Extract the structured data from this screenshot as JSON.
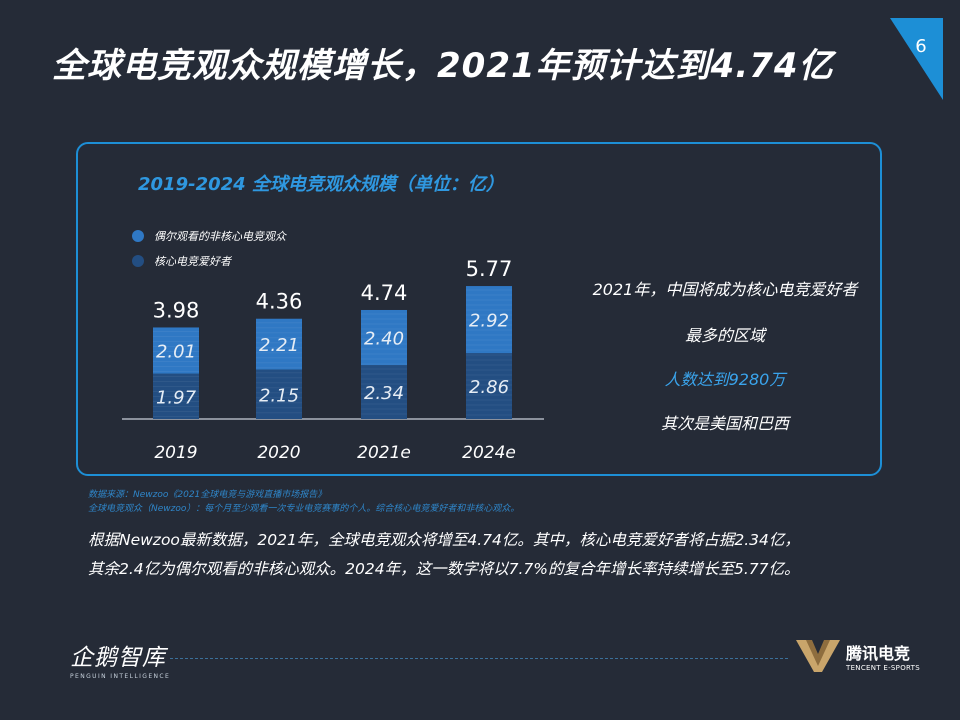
{
  "title": "全球电竞观众规模增长，2021年预计达到4.74亿",
  "page_number": "6",
  "colors": {
    "background": "#252b37",
    "accent": "#1d8fd6",
    "bar_top": "#2f78c4",
    "bar_bottom": "#234e82",
    "highlight": "#3aa4ec"
  },
  "chart_data": {
    "type": "bar",
    "stacked": true,
    "title": "2019-2024 全球电竞观众规模（单位：亿）",
    "categories": [
      "2019",
      "2020",
      "2021e",
      "2024e"
    ],
    "series": [
      {
        "name": "核心电竞爱好者",
        "values": [
          1.97,
          2.15,
          2.34,
          2.86
        ],
        "labels": [
          "1.97",
          "2.15",
          "2.34",
          "2.86"
        ],
        "color": "#234e82"
      },
      {
        "name": "偶尔观看的非核心电竞观众",
        "values": [
          2.01,
          2.21,
          2.4,
          2.92
        ],
        "labels": [
          "2.01",
          "2.21",
          "2.40",
          "2.92"
        ],
        "color": "#2f78c4"
      }
    ],
    "totals": [
      "3.98",
      "4.36",
      "4.74",
      "5.77"
    ],
    "legend": [
      {
        "label": "偶尔观看的非核心电竞观众",
        "color": "#2f78c4"
      },
      {
        "label": "核心电竞爱好者",
        "color": "#234e82"
      }
    ],
    "legend_position": "top-left",
    "ylim": [
      0,
      6
    ],
    "grid": false
  },
  "side_notes": {
    "line1": "2021年，中国将成为核心电竞爱好者",
    "line2": "最多的区域",
    "line3": "人数达到9280万",
    "line4": "其次是美国和巴西"
  },
  "source": {
    "line1": "数据来源：Newzoo《2021全球电竞与游戏直播市场报告》",
    "line2": "全球电竞观众（Newzoo）：每个月至少观看一次专业电竞赛事的个人。综合核心电竞爱好者和非核心观众。"
  },
  "paragraph": {
    "line1": "根据Newzoo最新数据，2021年，全球电竞观众将增至4.74亿。其中，核心电竞爱好者将占据2.34亿，",
    "line2": "其余2.4亿为偶尔观看的非核心观众。2024年，这一数字将以7.7%的复合年增长率持续增长至5.77亿。"
  },
  "logo_left": {
    "cn": "企鹅智库",
    "en": "PENGUIN INTELLIGENCE"
  },
  "logo_right": {
    "cn": "腾讯电竞",
    "en": "TENCENT E-SPORTS"
  }
}
